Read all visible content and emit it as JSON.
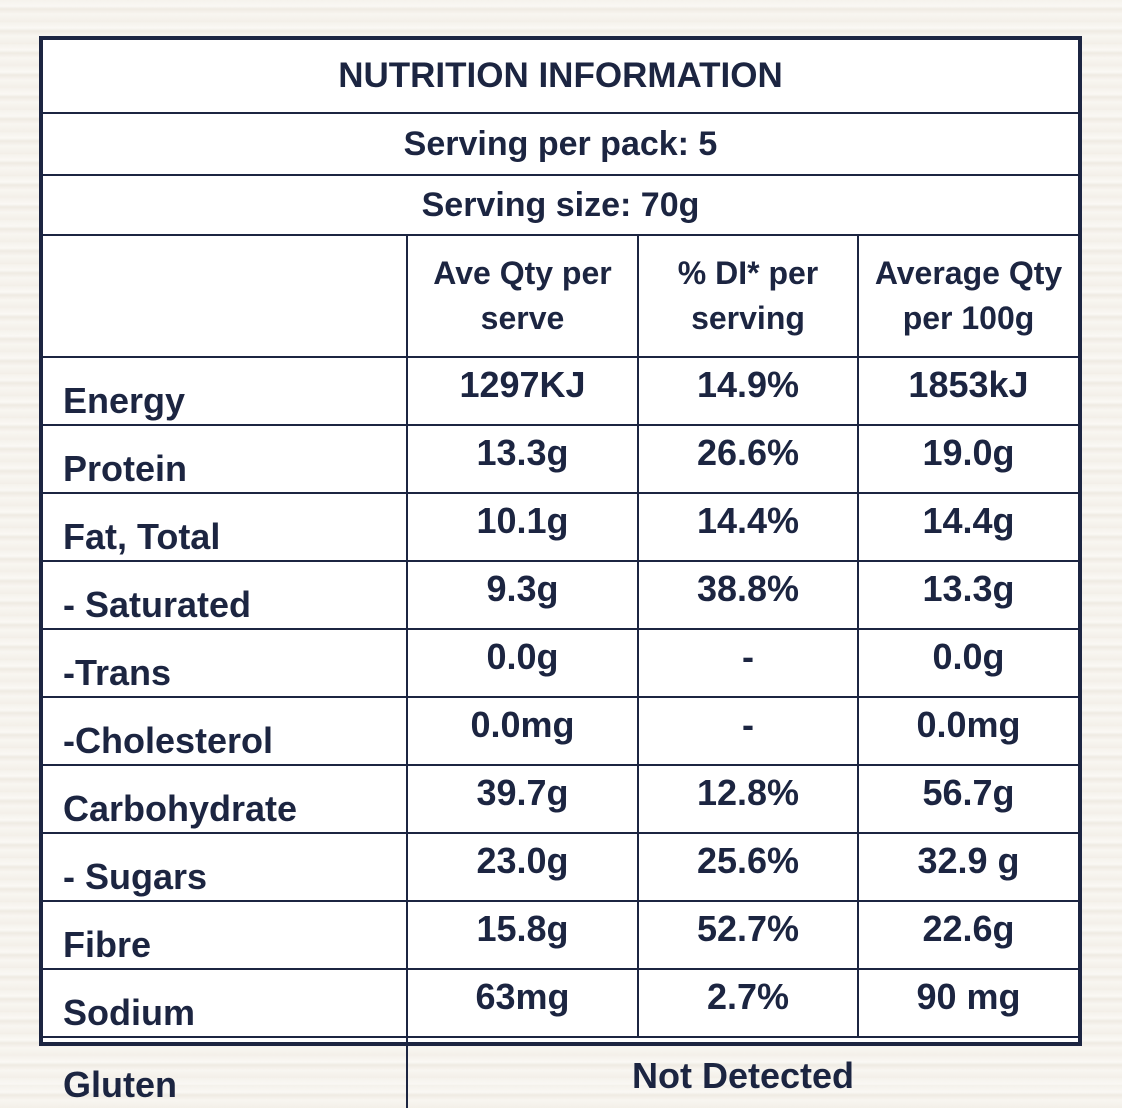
{
  "title": "NUTRITION INFORMATION",
  "serving_per_pack": "Serving per pack:  5",
  "serving_size": "Serving size: 70g",
  "columns": [
    "",
    "Ave Qty per serve",
    "% DI* per serving",
    "Average Qty per 100g"
  ],
  "rows": [
    {
      "name": "Energy",
      "per_serve": "1297KJ",
      "di": "14.9%",
      "per_100g": "1853kJ"
    },
    {
      "name": "Protein",
      "per_serve": "13.3g",
      "di": "26.6%",
      "per_100g": "19.0g"
    },
    {
      "name": "Fat, Total",
      "per_serve": "10.1g",
      "di": "14.4%",
      "per_100g": "14.4g"
    },
    {
      "name": "- Saturated",
      "per_serve": "9.3g",
      "di": "38.8%",
      "per_100g": "13.3g"
    },
    {
      "name": "-Trans",
      "per_serve": "0.0g",
      "di": "-",
      "per_100g": "0.0g"
    },
    {
      "name": "-Cholesterol",
      "per_serve": "0.0mg",
      "di": "-",
      "per_100g": "0.0mg"
    },
    {
      "name": "Carbohydrate",
      "per_serve": "39.7g",
      "di": "12.8%",
      "per_100g": "56.7g"
    },
    {
      "name": "- Sugars",
      "per_serve": "23.0g",
      "di": "25.6%",
      "per_100g": "32.9 g"
    },
    {
      "name": "Fibre",
      "per_serve": "15.8g",
      "di": "52.7%",
      "per_100g": "22.6g"
    },
    {
      "name": "Sodium",
      "per_serve": "63mg",
      "di": "2.7%",
      "per_100g": "90 mg"
    }
  ],
  "gluten": {
    "name": "Gluten",
    "value": "Not Detected"
  }
}
